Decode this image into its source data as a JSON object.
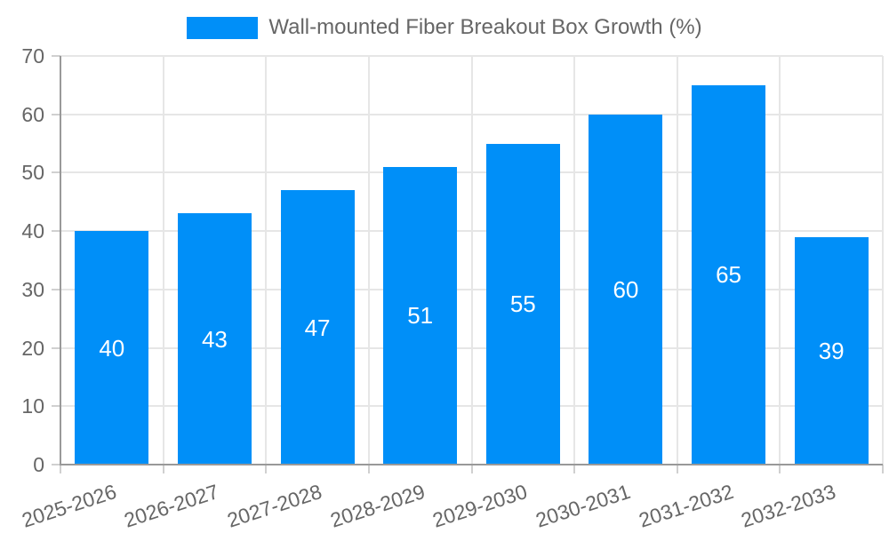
{
  "chart_data": {
    "type": "bar",
    "title": "Wall-mounted Fiber Breakout Box Growth (%)",
    "categories": [
      "2025-2026",
      "2026-2027",
      "2027-2028",
      "2028-2029",
      "2029-2030",
      "2030-2031",
      "2031-2032",
      "2032-2033"
    ],
    "values": [
      40,
      43,
      47,
      51,
      55,
      60,
      65,
      39
    ],
    "xlabel": "",
    "ylabel": "",
    "ylim": [
      0,
      70
    ],
    "yticks": [
      0,
      10,
      20,
      30,
      40,
      50,
      60,
      70
    ],
    "grid": true,
    "legend_position": "top",
    "colors": {
      "bar": "#008FF8",
      "bar_value_text": "#ffffff",
      "axis_text": "#666666",
      "grid": "#e6e6e6",
      "axis_line": "#999999",
      "tick": "#d0d0d0",
      "background": "#ffffff"
    }
  }
}
